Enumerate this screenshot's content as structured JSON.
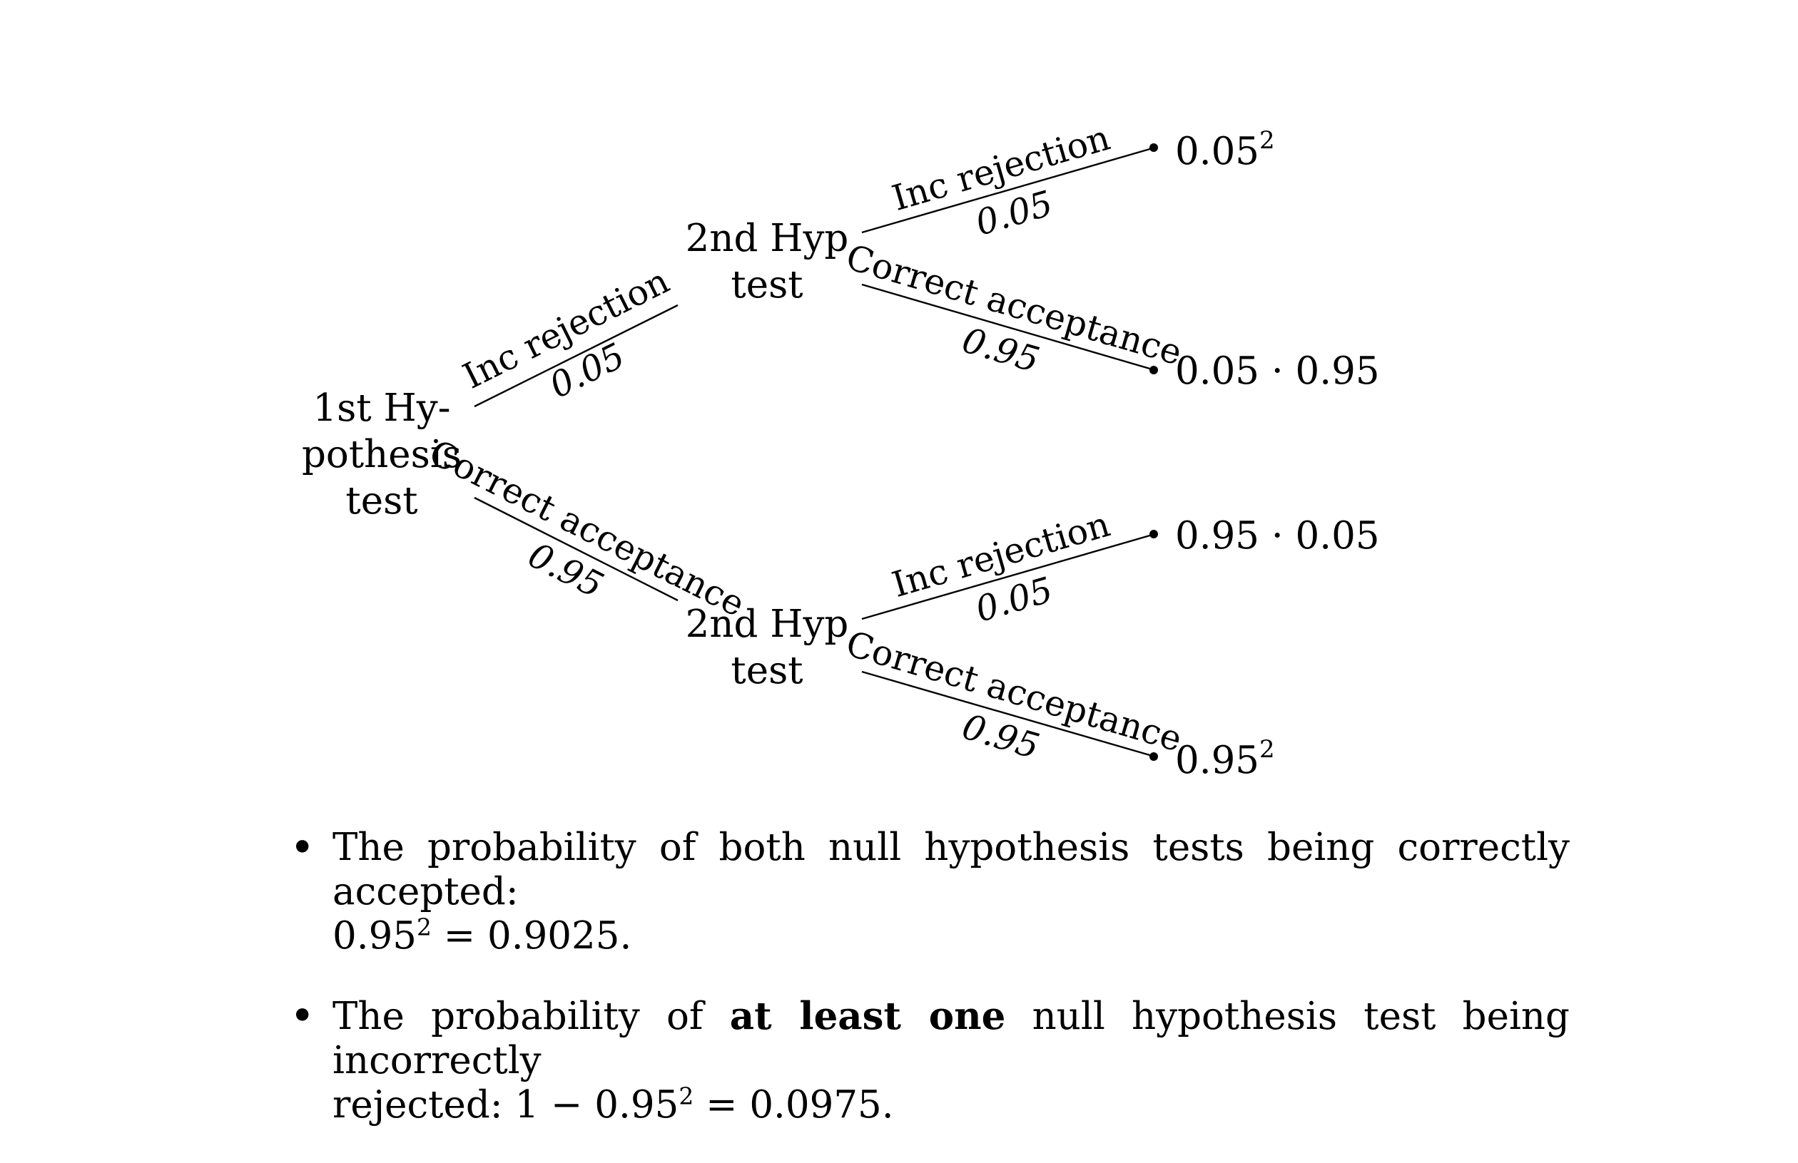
{
  "tree": {
    "root": {
      "lines": [
        "1st Hy-",
        "pothesis",
        "test"
      ]
    },
    "top_node": {
      "lines": [
        "2nd Hyp",
        "test"
      ]
    },
    "bottom_node": {
      "lines": [
        "2nd Hyp",
        "test"
      ]
    },
    "edges": {
      "root_top": {
        "label": "Inc rejection",
        "prob": "0.05"
      },
      "root_bottom": {
        "label": "Correct acceptance",
        "prob": "0.95"
      },
      "top_top": {
        "label": "Inc rejection",
        "prob": "0.05"
      },
      "top_bottom": {
        "label": "Correct acceptance",
        "prob": "0.95"
      },
      "bottom_top": {
        "label": "Inc rejection",
        "prob": "0.05"
      },
      "bottom_bottom": {
        "label": "Correct acceptance",
        "prob": "0.95"
      }
    },
    "leaves": {
      "leaf1": {
        "base": "0.05",
        "sup": "2",
        "text": ""
      },
      "leaf2": {
        "base": "",
        "sup": "",
        "text": "0.05 · 0.95"
      },
      "leaf3": {
        "base": "",
        "sup": "",
        "text": "0.95 · 0.05"
      },
      "leaf4": {
        "base": "0.95",
        "sup": "2",
        "text": ""
      }
    }
  },
  "bullets": [
    {
      "text_a": "The probability of both null hypothesis tests being correctly accepted:",
      "math_base": "0.95",
      "math_sup": "2",
      "math_rest": " = 0.9025."
    },
    {
      "pre": "The probability of ",
      "bold": "at least one",
      "post": " null hypothesis test being incorrectly",
      "line2_pre": "rejected: 1 − 0.95",
      "math_sup": "2",
      "math_rest": " = 0.0975."
    }
  ]
}
